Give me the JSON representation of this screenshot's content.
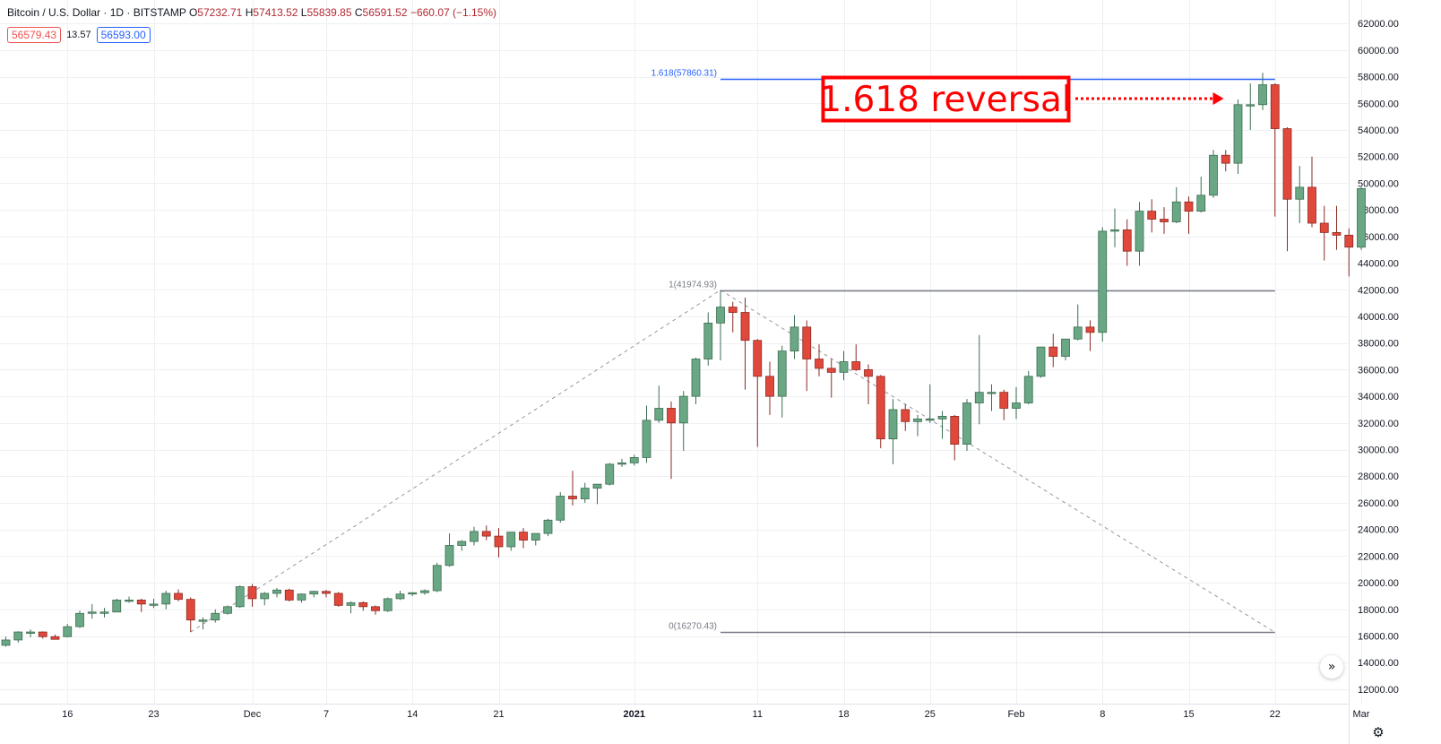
{
  "header": {
    "symbol": "Bitcoin / U.S. Dollar · 1D · BITSTAMP",
    "o_label": "O",
    "o_value": "57232.71",
    "h_label": "H",
    "h_value": "57413.52",
    "l_label": "L",
    "l_value": "55839.85",
    "c_label": "C",
    "c_value": "56591.52",
    "change": "−660.07 (−1.15%)"
  },
  "badges": {
    "sell": "56579.43",
    "spread": "13.57",
    "buy": "56593.00"
  },
  "colors": {
    "up": "#6aa784",
    "down": "#e0483c",
    "fib_top": "#2962ff",
    "fib_line": "#787b86",
    "annotation": "#ff0000"
  },
  "icons": {
    "scroll": "double-chevron-right-icon",
    "settings": "gear-icon"
  },
  "chart_data": {
    "type": "candlestick",
    "y_axis": {
      "ylim": [
        11000,
        62500
      ],
      "ticks": [
        12000,
        14000,
        16000,
        18000,
        20000,
        22000,
        24000,
        26000,
        28000,
        30000,
        32000,
        34000,
        36000,
        38000,
        40000,
        42000,
        44000,
        46000,
        48000,
        50000,
        52000,
        54000,
        56000,
        58000,
        60000,
        62000
      ],
      "tick_labels": [
        "12000.00",
        "14000.00",
        "16000.00",
        "18000.00",
        "20000.00",
        "22000.00",
        "24000.00",
        "26000.00",
        "28000.00",
        "30000.00",
        "32000.00",
        "34000.00",
        "36000.00",
        "38000.00",
        "40000.00",
        "42000.00",
        "44000.00",
        "46000.00",
        "48000.00",
        "50000.00",
        "52000.00",
        "54000.00",
        "56000.00",
        "58000.00",
        "60000.00",
        "62000.00"
      ]
    },
    "x_axis": {
      "start_date": "2020-11-11",
      "end_date": "2021-03-01",
      "labels": [
        {
          "text": "16",
          "date": "2020-11-16"
        },
        {
          "text": "23",
          "date": "2020-11-23"
        },
        {
          "text": "Dec",
          "date": "2020-12-01"
        },
        {
          "text": "7",
          "date": "2020-12-07"
        },
        {
          "text": "14",
          "date": "2020-12-14"
        },
        {
          "text": "21",
          "date": "2020-12-21"
        },
        {
          "text": "2021",
          "date": "2021-01-01"
        },
        {
          "text": "11",
          "date": "2021-01-11"
        },
        {
          "text": "18",
          "date": "2021-01-18"
        },
        {
          "text": "25",
          "date": "2021-01-25"
        },
        {
          "text": "Feb",
          "date": "2021-02-01"
        },
        {
          "text": "8",
          "date": "2021-02-08"
        },
        {
          "text": "15",
          "date": "2021-02-15"
        },
        {
          "text": "22",
          "date": "2021-02-22"
        },
        {
          "text": "Mar",
          "date": "2021-03-01"
        }
      ]
    },
    "candles": [
      {
        "date": "2020-11-11",
        "o": 15300,
        "h": 15950,
        "l": 15200,
        "c": 15700
      },
      {
        "date": "2020-11-12",
        "o": 15700,
        "h": 16350,
        "l": 15500,
        "c": 16300
      },
      {
        "date": "2020-11-13",
        "o": 16300,
        "h": 16500,
        "l": 15900,
        "c": 16300
      },
      {
        "date": "2020-11-14",
        "o": 16300,
        "h": 16350,
        "l": 15800,
        "c": 15950
      },
      {
        "date": "2020-11-15",
        "o": 15950,
        "h": 16100,
        "l": 15800,
        "c": 15750
      },
      {
        "date": "2020-11-16",
        "o": 15950,
        "h": 16900,
        "l": 15900,
        "c": 16700
      },
      {
        "date": "2020-11-17",
        "o": 16700,
        "h": 17900,
        "l": 16600,
        "c": 17700
      },
      {
        "date": "2020-11-18",
        "o": 17700,
        "h": 18400,
        "l": 17300,
        "c": 17800
      },
      {
        "date": "2020-11-19",
        "o": 17800,
        "h": 18100,
        "l": 17400,
        "c": 17800
      },
      {
        "date": "2020-11-20",
        "o": 17800,
        "h": 18800,
        "l": 17800,
        "c": 18700
      },
      {
        "date": "2020-11-21",
        "o": 18700,
        "h": 18950,
        "l": 18500,
        "c": 18700
      },
      {
        "date": "2020-11-22",
        "o": 18700,
        "h": 18800,
        "l": 17800,
        "c": 18400
      },
      {
        "date": "2020-11-23",
        "o": 18400,
        "h": 18800,
        "l": 18100,
        "c": 18400
      },
      {
        "date": "2020-11-24",
        "o": 18400,
        "h": 19400,
        "l": 18000,
        "c": 19200
      },
      {
        "date": "2020-11-25",
        "o": 19200,
        "h": 19500,
        "l": 18600,
        "c": 18750
      },
      {
        "date": "2020-11-26",
        "o": 18750,
        "h": 18900,
        "l": 16300,
        "c": 17200
      },
      {
        "date": "2020-11-27",
        "o": 17200,
        "h": 17400,
        "l": 16500,
        "c": 17200
      },
      {
        "date": "2020-11-28",
        "o": 17200,
        "h": 18000,
        "l": 17000,
        "c": 17700
      },
      {
        "date": "2020-11-29",
        "o": 17700,
        "h": 18300,
        "l": 17600,
        "c": 18200
      },
      {
        "date": "2020-11-30",
        "o": 18200,
        "h": 19800,
        "l": 18100,
        "c": 19700
      },
      {
        "date": "2020-12-01",
        "o": 19700,
        "h": 19900,
        "l": 18200,
        "c": 18800
      },
      {
        "date": "2020-12-02",
        "o": 18800,
        "h": 19300,
        "l": 18300,
        "c": 19200
      },
      {
        "date": "2020-12-03",
        "o": 19200,
        "h": 19600,
        "l": 18900,
        "c": 19450
      },
      {
        "date": "2020-12-04",
        "o": 19450,
        "h": 19550,
        "l": 18600,
        "c": 18700
      },
      {
        "date": "2020-12-05",
        "o": 18700,
        "h": 19200,
        "l": 18500,
        "c": 19150
      },
      {
        "date": "2020-12-06",
        "o": 19150,
        "h": 19400,
        "l": 18900,
        "c": 19350
      },
      {
        "date": "2020-12-07",
        "o": 19350,
        "h": 19450,
        "l": 18900,
        "c": 19200
      },
      {
        "date": "2020-12-08",
        "o": 19200,
        "h": 19300,
        "l": 18200,
        "c": 18300
      },
      {
        "date": "2020-12-09",
        "o": 18300,
        "h": 18600,
        "l": 17700,
        "c": 18500
      },
      {
        "date": "2020-12-10",
        "o": 18500,
        "h": 18600,
        "l": 17900,
        "c": 18200
      },
      {
        "date": "2020-12-11",
        "o": 18200,
        "h": 18300,
        "l": 17600,
        "c": 17900
      },
      {
        "date": "2020-12-12",
        "o": 17900,
        "h": 18900,
        "l": 17800,
        "c": 18800
      },
      {
        "date": "2020-12-13",
        "o": 18800,
        "h": 19400,
        "l": 18700,
        "c": 19150
      },
      {
        "date": "2020-12-14",
        "o": 19150,
        "h": 19300,
        "l": 19000,
        "c": 19250
      },
      {
        "date": "2020-12-15",
        "o": 19250,
        "h": 19500,
        "l": 19100,
        "c": 19400
      },
      {
        "date": "2020-12-16",
        "o": 19400,
        "h": 21500,
        "l": 19300,
        "c": 21300
      },
      {
        "date": "2020-12-17",
        "o": 21300,
        "h": 23700,
        "l": 21200,
        "c": 22800
      },
      {
        "date": "2020-12-18",
        "o": 22800,
        "h": 23200,
        "l": 22400,
        "c": 23100
      },
      {
        "date": "2020-12-19",
        "o": 23100,
        "h": 24200,
        "l": 22800,
        "c": 23850
      },
      {
        "date": "2020-12-20",
        "o": 23850,
        "h": 24300,
        "l": 23200,
        "c": 23500
      },
      {
        "date": "2020-12-21",
        "o": 23500,
        "h": 24100,
        "l": 21900,
        "c": 22700
      },
      {
        "date": "2020-12-22",
        "o": 22700,
        "h": 23800,
        "l": 22400,
        "c": 23800
      },
      {
        "date": "2020-12-23",
        "o": 23800,
        "h": 24100,
        "l": 22600,
        "c": 23200
      },
      {
        "date": "2020-12-24",
        "o": 23200,
        "h": 23700,
        "l": 22800,
        "c": 23700
      },
      {
        "date": "2020-12-25",
        "o": 23700,
        "h": 24800,
        "l": 23500,
        "c": 24700
      },
      {
        "date": "2020-12-26",
        "o": 24700,
        "h": 26800,
        "l": 24500,
        "c": 26500
      },
      {
        "date": "2020-12-27",
        "o": 26500,
        "h": 28400,
        "l": 25800,
        "c": 26300
      },
      {
        "date": "2020-12-28",
        "o": 26300,
        "h": 27500,
        "l": 26000,
        "c": 27100
      },
      {
        "date": "2020-12-29",
        "o": 27100,
        "h": 27400,
        "l": 25900,
        "c": 27400
      },
      {
        "date": "2020-12-30",
        "o": 27400,
        "h": 29000,
        "l": 27300,
        "c": 28900
      },
      {
        "date": "2020-12-31",
        "o": 28900,
        "h": 29300,
        "l": 28700,
        "c": 29000
      },
      {
        "date": "2021-01-01",
        "o": 29000,
        "h": 29600,
        "l": 28800,
        "c": 29400
      },
      {
        "date": "2021-01-02",
        "o": 29400,
        "h": 33300,
        "l": 29000,
        "c": 32200
      },
      {
        "date": "2021-01-03",
        "o": 32200,
        "h": 34800,
        "l": 32000,
        "c": 33100
      },
      {
        "date": "2021-01-04",
        "o": 33100,
        "h": 33600,
        "l": 27800,
        "c": 32000
      },
      {
        "date": "2021-01-05",
        "o": 32000,
        "h": 34400,
        "l": 29900,
        "c": 34000
      },
      {
        "date": "2021-01-06",
        "o": 34000,
        "h": 36900,
        "l": 33400,
        "c": 36800
      },
      {
        "date": "2021-01-07",
        "o": 36800,
        "h": 40300,
        "l": 36300,
        "c": 39500
      },
      {
        "date": "2021-01-08",
        "o": 39500,
        "h": 41950,
        "l": 36700,
        "c": 40700
      },
      {
        "date": "2021-01-09",
        "o": 40700,
        "h": 41100,
        "l": 38800,
        "c": 40300
      },
      {
        "date": "2021-01-10",
        "o": 40300,
        "h": 41400,
        "l": 34500,
        "c": 38200
      },
      {
        "date": "2021-01-11",
        "o": 38200,
        "h": 38300,
        "l": 30200,
        "c": 35500
      },
      {
        "date": "2021-01-12",
        "o": 35500,
        "h": 36600,
        "l": 32600,
        "c": 34000
      },
      {
        "date": "2021-01-13",
        "o": 34000,
        "h": 37800,
        "l": 32400,
        "c": 37400
      },
      {
        "date": "2021-01-14",
        "o": 37400,
        "h": 40100,
        "l": 36800,
        "c": 39200
      },
      {
        "date": "2021-01-15",
        "o": 39200,
        "h": 39700,
        "l": 34400,
        "c": 36800
      },
      {
        "date": "2021-01-16",
        "o": 36800,
        "h": 37900,
        "l": 35500,
        "c": 36100
      },
      {
        "date": "2021-01-17",
        "o": 36100,
        "h": 36800,
        "l": 33900,
        "c": 35800
      },
      {
        "date": "2021-01-18",
        "o": 35800,
        "h": 37400,
        "l": 35200,
        "c": 36600
      },
      {
        "date": "2021-01-19",
        "o": 36600,
        "h": 37900,
        "l": 35900,
        "c": 36000
      },
      {
        "date": "2021-01-20",
        "o": 36000,
        "h": 36400,
        "l": 33400,
        "c": 35500
      },
      {
        "date": "2021-01-21",
        "o": 35500,
        "h": 35600,
        "l": 30100,
        "c": 30800
      },
      {
        "date": "2021-01-22",
        "o": 30800,
        "h": 33800,
        "l": 28900,
        "c": 33000
      },
      {
        "date": "2021-01-23",
        "o": 33000,
        "h": 33400,
        "l": 31400,
        "c": 32100
      },
      {
        "date": "2021-01-24",
        "o": 32100,
        "h": 32600,
        "l": 31000,
        "c": 32300
      },
      {
        "date": "2021-01-25",
        "o": 32300,
        "h": 34900,
        "l": 32000,
        "c": 32300
      },
      {
        "date": "2021-01-26",
        "o": 32300,
        "h": 32900,
        "l": 30800,
        "c": 32500
      },
      {
        "date": "2021-01-27",
        "o": 32500,
        "h": 32600,
        "l": 29200,
        "c": 30400
      },
      {
        "date": "2021-01-28",
        "o": 30400,
        "h": 33800,
        "l": 29900,
        "c": 33500
      },
      {
        "date": "2021-01-29",
        "o": 33500,
        "h": 38600,
        "l": 31900,
        "c": 34300
      },
      {
        "date": "2021-01-30",
        "o": 34300,
        "h": 34900,
        "l": 32900,
        "c": 34300
      },
      {
        "date": "2021-01-31",
        "o": 34300,
        "h": 34500,
        "l": 32200,
        "c": 33100
      },
      {
        "date": "2021-02-01",
        "o": 33100,
        "h": 34700,
        "l": 32300,
        "c": 33500
      },
      {
        "date": "2021-02-02",
        "o": 33500,
        "h": 35900,
        "l": 33400,
        "c": 35500
      },
      {
        "date": "2021-02-03",
        "o": 35500,
        "h": 37700,
        "l": 35400,
        "c": 37700
      },
      {
        "date": "2021-02-04",
        "o": 37700,
        "h": 38700,
        "l": 36200,
        "c": 37000
      },
      {
        "date": "2021-02-05",
        "o": 37000,
        "h": 38300,
        "l": 36700,
        "c": 38300
      },
      {
        "date": "2021-02-06",
        "o": 38300,
        "h": 40900,
        "l": 38200,
        "c": 39200
      },
      {
        "date": "2021-02-07",
        "o": 39200,
        "h": 39700,
        "l": 37400,
        "c": 38800
      },
      {
        "date": "2021-02-08",
        "o": 38800,
        "h": 46700,
        "l": 38100,
        "c": 46400
      },
      {
        "date": "2021-02-09",
        "o": 46400,
        "h": 48100,
        "l": 45200,
        "c": 46500
      },
      {
        "date": "2021-02-10",
        "o": 46500,
        "h": 47300,
        "l": 43800,
        "c": 44900
      },
      {
        "date": "2021-02-11",
        "o": 44900,
        "h": 48600,
        "l": 43800,
        "c": 47900
      },
      {
        "date": "2021-02-12",
        "o": 47900,
        "h": 48800,
        "l": 46300,
        "c": 47300
      },
      {
        "date": "2021-02-13",
        "o": 47300,
        "h": 48200,
        "l": 46200,
        "c": 47100
      },
      {
        "date": "2021-02-14",
        "o": 47100,
        "h": 49700,
        "l": 47000,
        "c": 48600
      },
      {
        "date": "2021-02-15",
        "o": 48600,
        "h": 49000,
        "l": 46200,
        "c": 47900
      },
      {
        "date": "2021-02-16",
        "o": 47900,
        "h": 50500,
        "l": 47800,
        "c": 49100
      },
      {
        "date": "2021-02-17",
        "o": 49100,
        "h": 52500,
        "l": 48900,
        "c": 52100
      },
      {
        "date": "2021-02-18",
        "o": 52100,
        "h": 52500,
        "l": 50900,
        "c": 51500
      },
      {
        "date": "2021-02-19",
        "o": 51500,
        "h": 56300,
        "l": 50700,
        "c": 55900
      },
      {
        "date": "2021-02-20",
        "o": 55900,
        "h": 57500,
        "l": 54000,
        "c": 55900
      },
      {
        "date": "2021-02-21",
        "o": 55900,
        "h": 58300,
        "l": 55500,
        "c": 57400
      },
      {
        "date": "2021-02-22",
        "o": 57400,
        "h": 57500,
        "l": 47500,
        "c": 54100
      },
      {
        "date": "2021-02-23",
        "o": 54100,
        "h": 54200,
        "l": 44900,
        "c": 48800
      },
      {
        "date": "2021-02-24",
        "o": 48800,
        "h": 51300,
        "l": 47000,
        "c": 49700
      },
      {
        "date": "2021-02-25",
        "o": 49700,
        "h": 52000,
        "l": 46700,
        "c": 47000
      },
      {
        "date": "2021-02-26",
        "o": 47000,
        "h": 48300,
        "l": 44200,
        "c": 46300
      },
      {
        "date": "2021-02-27",
        "o": 46300,
        "h": 48300,
        "l": 45000,
        "c": 46100
      },
      {
        "date": "2021-02-28",
        "o": 46100,
        "h": 46600,
        "l": 43000,
        "c": 45200
      },
      {
        "date": "2021-03-01",
        "o": 45200,
        "h": 49700,
        "l": 45000,
        "c": 49600
      }
    ],
    "fib_levels": [
      {
        "label": "1.618(57860.31)",
        "value": 57860.31,
        "color": "#2962ff"
      },
      {
        "label": "1(41974.93)",
        "value": 41974.93,
        "color": "#787b86"
      },
      {
        "label": "0(16270.43)",
        "value": 16270.43,
        "color": "#787b86"
      }
    ],
    "fib_range": {
      "start": "2021-01-08",
      "end": "2021-02-22"
    },
    "trend_points": [
      {
        "date": "2020-11-26",
        "value": 16300
      },
      {
        "date": "2021-01-08",
        "value": 41974.93
      },
      {
        "date": "2021-02-22",
        "value": 16270.43
      }
    ],
    "annotation": {
      "text": "1.618 reversal",
      "arrow_to": {
        "date": "2021-02-19",
        "value": 56200
      }
    }
  }
}
